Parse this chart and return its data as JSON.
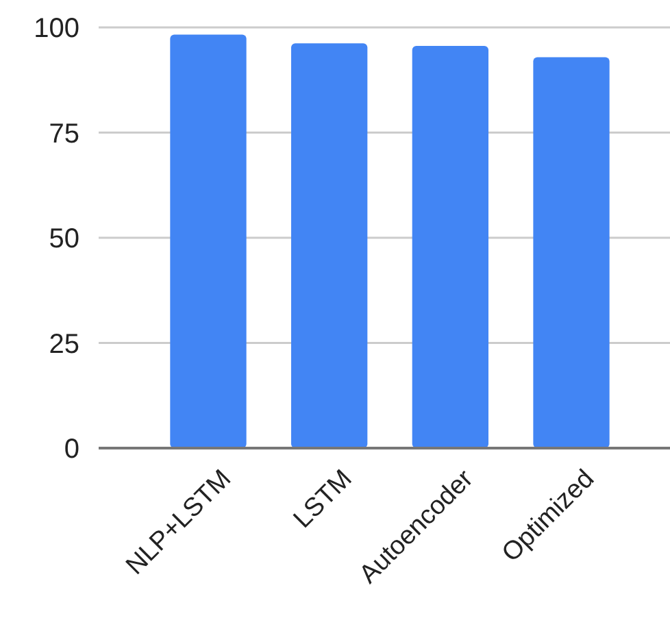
{
  "chart_data": {
    "type": "bar",
    "categories": [
      "NLP+LSTM",
      "LSTM",
      "Autoencoder",
      "Optimized"
    ],
    "values": [
      98.3,
      96.2,
      95.6,
      92.9
    ],
    "color": "#4285f4",
    "ylim": [
      0,
      100
    ],
    "yticks": [
      0,
      25,
      50,
      75,
      100
    ],
    "grid": "y"
  }
}
